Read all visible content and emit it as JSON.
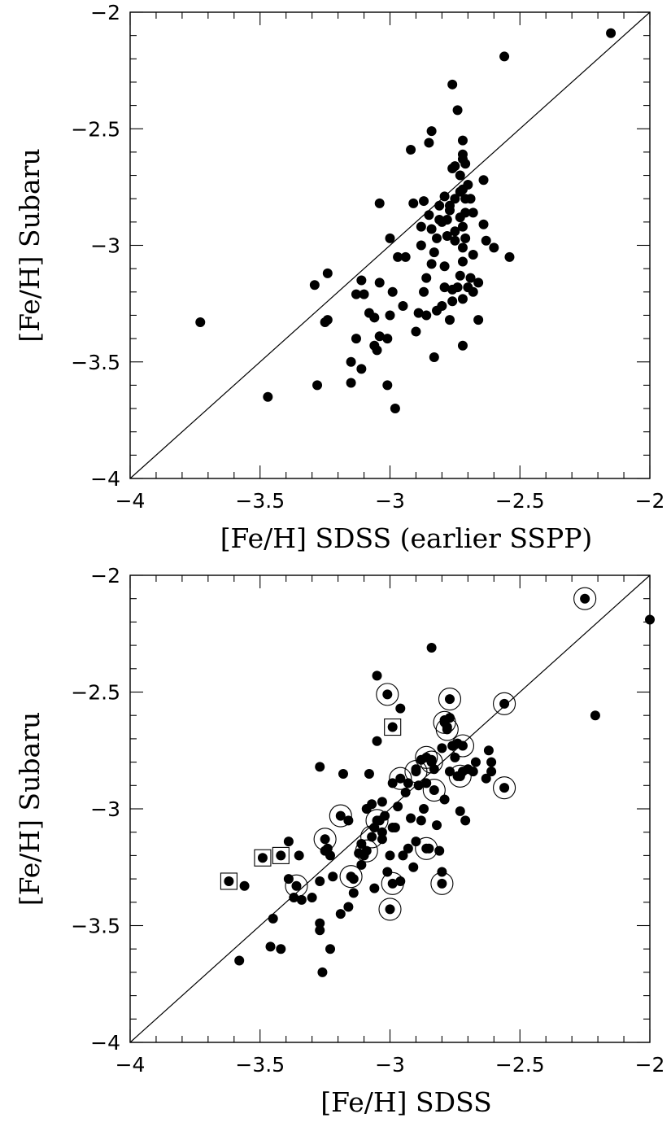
{
  "chart_data": [
    {
      "type": "scatter",
      "xlabel": "[Fe/H] SDSS (earlier SSPP)",
      "ylabel": "[Fe/H] Subaru",
      "xlim": [
        -4,
        -2
      ],
      "ylim": [
        -4,
        -2
      ],
      "xticks": [
        "−4",
        "−3.5",
        "−3",
        "−2.5",
        "−2"
      ],
      "yticks": [
        "−4",
        "−3.5",
        "−3",
        "−2.5",
        "−2"
      ],
      "reference_line": "one-to-one",
      "grid": false,
      "series": [
        {
          "marker": "filled-circle",
          "points": [
            [
              -3.73,
              -3.33
            ],
            [
              -3.47,
              -3.65
            ],
            [
              -3.28,
              -3.6
            ],
            [
              -3.29,
              -3.17
            ],
            [
              -3.25,
              -3.33
            ],
            [
              -3.24,
              -3.32
            ],
            [
              -3.24,
              -3.12
            ],
            [
              -3.15,
              -3.5
            ],
            [
              -3.15,
              -3.59
            ],
            [
              -3.13,
              -3.4
            ],
            [
              -3.13,
              -3.21
            ],
            [
              -3.11,
              -3.15
            ],
            [
              -3.11,
              -3.53
            ],
            [
              -3.1,
              -3.21
            ],
            [
              -3.08,
              -3.29
            ],
            [
              -3.06,
              -3.31
            ],
            [
              -3.05,
              -3.45
            ],
            [
              -3.04,
              -3.39
            ],
            [
              -3.04,
              -3.16
            ],
            [
              -3.06,
              -3.43
            ],
            [
              -3.04,
              -2.82
            ],
            [
              -3.01,
              -3.4
            ],
            [
              -3.01,
              -3.6
            ],
            [
              -3.0,
              -2.97
            ],
            [
              -3.0,
              -3.3
            ],
            [
              -2.99,
              -3.2
            ],
            [
              -2.98,
              -3.7
            ],
            [
              -2.97,
              -3.05
            ],
            [
              -2.95,
              -3.26
            ],
            [
              -2.94,
              -3.05
            ],
            [
              -2.92,
              -2.59
            ],
            [
              -2.91,
              -2.82
            ],
            [
              -2.9,
              -3.37
            ],
            [
              -2.89,
              -3.29
            ],
            [
              -2.88,
              -3.0
            ],
            [
              -2.88,
              -2.92
            ],
            [
              -2.87,
              -2.81
            ],
            [
              -2.87,
              -3.2
            ],
            [
              -2.86,
              -3.14
            ],
            [
              -2.86,
              -3.3
            ],
            [
              -2.85,
              -2.56
            ],
            [
              -2.85,
              -2.87
            ],
            [
              -2.84,
              -2.51
            ],
            [
              -2.84,
              -3.08
            ],
            [
              -2.84,
              -2.93
            ],
            [
              -2.83,
              -3.03
            ],
            [
              -2.83,
              -3.48
            ],
            [
              -2.82,
              -3.28
            ],
            [
              -2.82,
              -2.97
            ],
            [
              -2.81,
              -2.83
            ],
            [
              -2.81,
              -2.89
            ],
            [
              -2.8,
              -3.26
            ],
            [
              -2.8,
              -2.9
            ],
            [
              -2.79,
              -3.18
            ],
            [
              -2.79,
              -3.09
            ],
            [
              -2.79,
              -2.79
            ],
            [
              -2.78,
              -2.96
            ],
            [
              -2.78,
              -2.89
            ],
            [
              -2.77,
              -2.85
            ],
            [
              -2.77,
              -3.32
            ],
            [
              -2.77,
              -2.83
            ],
            [
              -2.76,
              -2.31
            ],
            [
              -2.76,
              -2.67
            ],
            [
              -2.76,
              -3.24
            ],
            [
              -2.76,
              -3.19
            ],
            [
              -2.75,
              -2.94
            ],
            [
              -2.75,
              -2.98
            ],
            [
              -2.75,
              -2.8
            ],
            [
              -2.75,
              -2.66
            ],
            [
              -2.74,
              -2.42
            ],
            [
              -2.74,
              -3.18
            ],
            [
              -2.73,
              -3.13
            ],
            [
              -2.73,
              -2.88
            ],
            [
              -2.73,
              -2.7
            ],
            [
              -2.73,
              -2.77
            ],
            [
              -2.72,
              -2.55
            ],
            [
              -2.72,
              -2.61
            ],
            [
              -2.72,
              -2.63
            ],
            [
              -2.72,
              -2.76
            ],
            [
              -2.72,
              -2.92
            ],
            [
              -2.72,
              -3.01
            ],
            [
              -2.72,
              -3.07
            ],
            [
              -2.72,
              -3.23
            ],
            [
              -2.72,
              -3.43
            ],
            [
              -2.71,
              -2.65
            ],
            [
              -2.71,
              -2.8
            ],
            [
              -2.71,
              -2.86
            ],
            [
              -2.71,
              -2.97
            ],
            [
              -2.7,
              -3.18
            ],
            [
              -2.7,
              -2.74
            ],
            [
              -2.69,
              -3.14
            ],
            [
              -2.69,
              -2.8
            ],
            [
              -2.68,
              -2.86
            ],
            [
              -2.68,
              -3.04
            ],
            [
              -2.68,
              -3.2
            ],
            [
              -2.66,
              -3.32
            ],
            [
              -2.66,
              -3.16
            ],
            [
              -2.64,
              -2.72
            ],
            [
              -2.64,
              -2.91
            ],
            [
              -2.63,
              -2.98
            ],
            [
              -2.6,
              -3.01
            ],
            [
              -2.56,
              -2.19
            ],
            [
              -2.54,
              -3.05
            ],
            [
              -2.15,
              -2.09
            ]
          ]
        }
      ]
    },
    {
      "type": "scatter",
      "xlabel": "[Fe/H] SDSS",
      "ylabel": "[Fe/H] Subaru",
      "xlim": [
        -4,
        -2
      ],
      "ylim": [
        -4,
        -2
      ],
      "xticks": [
        "−4",
        "−3.5",
        "−3",
        "−2.5",
        "−2"
      ],
      "yticks": [
        "−4",
        "−3.5",
        "−3",
        "−2.5",
        "−2"
      ],
      "reference_line": "one-to-one",
      "grid": false,
      "series": [
        {
          "marker": "filled-circle",
          "points": [
            [
              -3.58,
              -3.65
            ],
            [
              -3.56,
              -3.33
            ],
            [
              -3.46,
              -3.59
            ],
            [
              -3.45,
              -3.47
            ],
            [
              -3.42,
              -3.6
            ],
            [
              -3.39,
              -3.14
            ],
            [
              -3.39,
              -3.3
            ],
            [
              -3.37,
              -3.38
            ],
            [
              -3.35,
              -3.2
            ],
            [
              -3.34,
              -3.39
            ],
            [
              -3.3,
              -3.38
            ],
            [
              -3.27,
              -3.31
            ],
            [
              -3.27,
              -3.49
            ],
            [
              -3.27,
              -3.52
            ],
            [
              -3.27,
              -2.82
            ],
            [
              -3.26,
              -3.7
            ],
            [
              -3.25,
              -3.18
            ],
            [
              -3.24,
              -3.17
            ],
            [
              -3.23,
              -3.2
            ],
            [
              -3.23,
              -3.6
            ],
            [
              -3.22,
              -3.29
            ],
            [
              -3.19,
              -3.45
            ],
            [
              -3.18,
              -2.85
            ],
            [
              -3.16,
              -3.42
            ],
            [
              -3.16,
              -3.05
            ],
            [
              -3.14,
              -3.3
            ],
            [
              -3.14,
              -3.36
            ],
            [
              -3.12,
              -3.19
            ],
            [
              -3.11,
              -3.15
            ],
            [
              -3.11,
              -3.24
            ],
            [
              -3.1,
              -3.2
            ],
            [
              -3.09,
              -3.0
            ],
            [
              -3.08,
              -2.85
            ],
            [
              -3.07,
              -2.98
            ],
            [
              -3.06,
              -3.08
            ],
            [
              -3.06,
              -3.34
            ],
            [
              -3.05,
              -2.71
            ],
            [
              -3.05,
              -2.43
            ],
            [
              -3.04,
              -3.05
            ],
            [
              -3.03,
              -3.1
            ],
            [
              -3.03,
              -3.13
            ],
            [
              -3.03,
              -2.97
            ],
            [
              -3.02,
              -3.03
            ],
            [
              -3.01,
              -3.27
            ],
            [
              -3.0,
              -3.2
            ],
            [
              -2.99,
              -3.08
            ],
            [
              -2.99,
              -2.89
            ],
            [
              -2.98,
              -3.08
            ],
            [
              -2.97,
              -2.99
            ],
            [
              -2.96,
              -3.31
            ],
            [
              -2.96,
              -2.57
            ],
            [
              -2.95,
              -3.2
            ],
            [
              -2.94,
              -2.93
            ],
            [
              -2.93,
              -3.17
            ],
            [
              -2.93,
              -2.89
            ],
            [
              -2.92,
              -3.04
            ],
            [
              -2.91,
              -3.25
            ],
            [
              -2.9,
              -3.14
            ],
            [
              -2.9,
              -2.83
            ],
            [
              -2.89,
              -2.9
            ],
            [
              -2.88,
              -2.79
            ],
            [
              -2.88,
              -3.05
            ],
            [
              -2.87,
              -3.0
            ],
            [
              -2.86,
              -2.89
            ],
            [
              -2.85,
              -3.17
            ],
            [
              -2.84,
              -2.31
            ],
            [
              -2.84,
              -2.79
            ],
            [
              -2.83,
              -2.83
            ],
            [
              -2.82,
              -3.07
            ],
            [
              -2.81,
              -3.18
            ],
            [
              -2.8,
              -3.27
            ],
            [
              -2.8,
              -2.74
            ],
            [
              -2.79,
              -2.96
            ],
            [
              -2.79,
              -2.62
            ],
            [
              -2.78,
              -2.65
            ],
            [
              -2.77,
              -2.61
            ],
            [
              -2.77,
              -2.84
            ],
            [
              -2.76,
              -2.73
            ],
            [
              -2.75,
              -2.78
            ],
            [
              -2.74,
              -2.72
            ],
            [
              -2.74,
              -2.86
            ],
            [
              -2.73,
              -3.01
            ],
            [
              -2.73,
              -2.86
            ],
            [
              -2.72,
              -2.84
            ],
            [
              -2.71,
              -3.05
            ],
            [
              -2.7,
              -2.83
            ],
            [
              -2.68,
              -2.84
            ],
            [
              -2.67,
              -2.8
            ],
            [
              -2.63,
              -2.87
            ],
            [
              -2.62,
              -2.75
            ],
            [
              -2.61,
              -2.8
            ],
            [
              -2.61,
              -2.84
            ],
            [
              -2.21,
              -2.6
            ],
            [
              -2.0,
              -2.19
            ]
          ]
        },
        {
          "marker": "circled-filled-circle",
          "points": [
            [
              -3.36,
              -3.33
            ],
            [
              -3.25,
              -3.13
            ],
            [
              -3.19,
              -3.03
            ],
            [
              -3.15,
              -3.29
            ],
            [
              -3.09,
              -3.18
            ],
            [
              -3.07,
              -3.12
            ],
            [
              -3.05,
              -3.05
            ],
            [
              -3.01,
              -2.51
            ],
            [
              -3.0,
              -3.43
            ],
            [
              -2.99,
              -3.32
            ],
            [
              -2.96,
              -2.87
            ],
            [
              -2.9,
              -2.84
            ],
            [
              -2.86,
              -2.78
            ],
            [
              -2.86,
              -3.17
            ],
            [
              -2.84,
              -2.8
            ],
            [
              -2.83,
              -2.92
            ],
            [
              -2.8,
              -3.32
            ],
            [
              -2.79,
              -2.63
            ],
            [
              -2.78,
              -2.66
            ],
            [
              -2.77,
              -2.53
            ],
            [
              -2.73,
              -2.86
            ],
            [
              -2.72,
              -2.73
            ],
            [
              -2.56,
              -2.55
            ],
            [
              -2.56,
              -2.91
            ],
            [
              -2.25,
              -2.1
            ]
          ]
        },
        {
          "marker": "boxed-filled-circle",
          "points": [
            [
              -3.62,
              -3.31
            ],
            [
              -3.49,
              -3.21
            ],
            [
              -3.42,
              -3.2
            ],
            [
              -2.99,
              -2.65
            ]
          ]
        }
      ]
    }
  ]
}
